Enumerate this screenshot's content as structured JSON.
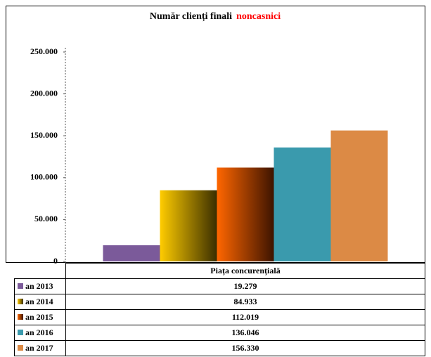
{
  "chart_data": {
    "type": "bar",
    "title": "Număr clienți finali",
    "title_highlight": "noncasnici",
    "title_highlight_color": "#ff0000",
    "categories": [
      "Piața concurențială"
    ],
    "series": [
      {
        "name": "an 2013",
        "color": "#7b5a9a",
        "values": [
          19279
        ],
        "value_labels": [
          "19.279"
        ]
      },
      {
        "name": "an 2014",
        "color": "#ffcc00",
        "color_end": "#3a2e00",
        "values": [
          84933
        ],
        "value_labels": [
          "84.933"
        ]
      },
      {
        "name": "an 2015",
        "color": "#ff6600",
        "color_end": "#3d1400",
        "values": [
          112019
        ],
        "value_labels": [
          "112.019"
        ]
      },
      {
        "name": "an 2016",
        "color": "#3a9aad",
        "values": [
          136046
        ],
        "value_labels": [
          "136.046"
        ]
      },
      {
        "name": "an 2017",
        "color": "#dc8a45",
        "values": [
          156330
        ],
        "value_labels": [
          "156.330"
        ]
      }
    ],
    "ylim": [
      0,
      250000
    ],
    "yticks": [
      0,
      {
        "value": 50000,
        "label": "50.000"
      },
      {
        "value": 100000,
        "label": "100.000"
      },
      {
        "value": 150000,
        "label": "150.000"
      },
      {
        "value": 200000,
        "label": "200.000"
      },
      {
        "value": 250000,
        "label": "250.000"
      }
    ],
    "grid": false,
    "data_table": true
  }
}
